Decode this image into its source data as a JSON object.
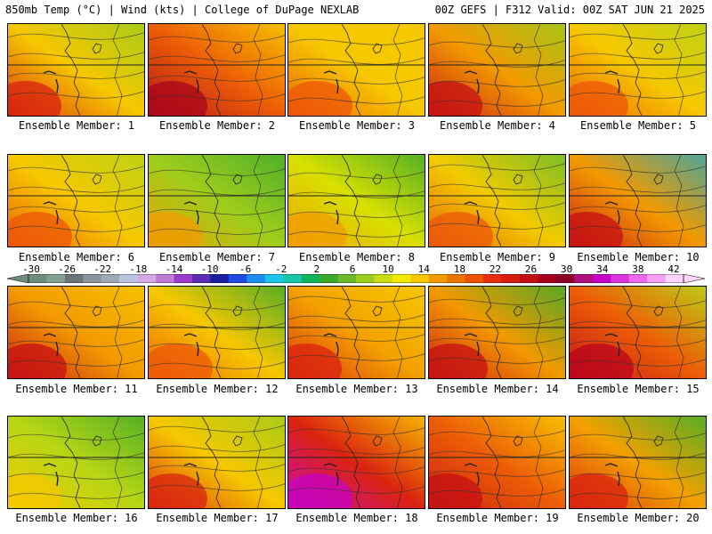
{
  "header": {
    "left": "850mb Temp (°C) | Wind (kts) | College of DuPage NEXLAB",
    "right": "00Z GEFS | F312 Valid: 00Z SAT JUN 21 2025"
  },
  "member_label_prefix": "Ensemble Member: ",
  "members": [
    {
      "id": "1",
      "label": "Ensemble Member: 1",
      "base": "#f6c800",
      "grad": [
        "#d81c10",
        "#f6c800",
        "#9ccc1c"
      ]
    },
    {
      "id": "2",
      "label": "Ensemble Member: 2",
      "base": "#f29a00",
      "grad": [
        "#a8001c",
        "#ec5208",
        "#f6c800"
      ]
    },
    {
      "id": "3",
      "label": "Ensemble Member: 3",
      "base": "#f6c800",
      "grad": [
        "#ec5208",
        "#f6c800",
        "#f6c800"
      ]
    },
    {
      "id": "4",
      "label": "Ensemble Member: 4",
      "base": "#f29a00",
      "grad": [
        "#c40c14",
        "#f29a00",
        "#9ccc1c"
      ]
    },
    {
      "id": "5",
      "label": "Ensemble Member: 5",
      "base": "#f6c800",
      "grad": [
        "#ec5208",
        "#f6c800",
        "#b4d418"
      ]
    },
    {
      "id": "6",
      "label": "Ensemble Member: 6",
      "base": "#f6c800",
      "grad": [
        "#ec5208",
        "#f6c800",
        "#b4d418"
      ]
    },
    {
      "id": "7",
      "label": "Ensemble Member: 7",
      "base": "#b4d418",
      "grad": [
        "#f29a00",
        "#9ccc1c",
        "#3ca82c"
      ]
    },
    {
      "id": "8",
      "label": "Ensemble Member: 8",
      "base": "#d8e000",
      "grad": [
        "#f29a00",
        "#d8e000",
        "#3ca82c"
      ]
    },
    {
      "id": "9",
      "label": "Ensemble Member: 9",
      "base": "#d8e000",
      "grad": [
        "#ec5208",
        "#f6c800",
        "#6cb82c"
      ]
    },
    {
      "id": "10",
      "label": "Ensemble Member: 10",
      "base": "#f29a00",
      "grad": [
        "#c40c14",
        "#f29a00",
        "#2ca8b4"
      ]
    },
    {
      "id": "11",
      "label": "Ensemble Member: 11",
      "base": "#f29a00",
      "grad": [
        "#c40c14",
        "#f29a00",
        "#f6c800"
      ]
    },
    {
      "id": "12",
      "label": "Ensemble Member: 12",
      "base": "#f6c800",
      "grad": [
        "#ec5208",
        "#f6c800",
        "#3ca82c"
      ]
    },
    {
      "id": "13",
      "label": "Ensemble Member: 13",
      "base": "#f6c800",
      "grad": [
        "#d81c10",
        "#f29a00",
        "#f6c800"
      ]
    },
    {
      "id": "14",
      "label": "Ensemble Member: 14",
      "base": "#f29a00",
      "grad": [
        "#c40c14",
        "#f29a00",
        "#3ca82c"
      ]
    },
    {
      "id": "15",
      "label": "Ensemble Member: 15",
      "base": "#f29a00",
      "grad": [
        "#b8001c",
        "#ec5208",
        "#b4d418"
      ]
    },
    {
      "id": "16",
      "label": "Ensemble Member: 16",
      "base": "#d8e000",
      "grad": [
        "#f6c800",
        "#b4d418",
        "#3ca82c"
      ]
    },
    {
      "id": "17",
      "label": "Ensemble Member: 17",
      "base": "#f6c800",
      "grad": [
        "#d81c10",
        "#f6c800",
        "#9ccc1c"
      ]
    },
    {
      "id": "18",
      "label": "Ensemble Member: 18",
      "base": "#ec5208",
      "grad": [
        "#c800c8",
        "#d81c10",
        "#f6c800"
      ]
    },
    {
      "id": "19",
      "label": "Ensemble Member: 19",
      "base": "#f29a00",
      "grad": [
        "#c40c14",
        "#ec5208",
        "#f6c800"
      ]
    },
    {
      "id": "20",
      "label": "Ensemble Member: 20",
      "base": "#f6c800",
      "grad": [
        "#d81c10",
        "#f29a00",
        "#3ca82c"
      ]
    }
  ],
  "colorbar": {
    "labels": [
      "-30",
      "-26",
      "-22",
      "-18",
      "-14",
      "-10",
      "-6",
      "-2",
      "2",
      "6",
      "10",
      "14",
      "18",
      "22",
      "26",
      "30",
      "34",
      "38",
      "42"
    ],
    "colors": [
      "#6e8c7c",
      "#84a090",
      "#6c7478",
      "#8c949c",
      "#a0a8b4",
      "#bcc4e0",
      "#d8a8e4",
      "#c07cd8",
      "#9c3cc8",
      "#5c2cb4",
      "#1c1ca0",
      "#1c4ce4",
      "#1c8cf0",
      "#1cc4e8",
      "#18c8a8",
      "#10b45c",
      "#3ca82c",
      "#6cb82c",
      "#9ccc1c",
      "#c8dc10",
      "#f0ec00",
      "#f6c800",
      "#f29a00",
      "#ec7400",
      "#ec5208",
      "#e82c0c",
      "#d81c10",
      "#c40c14",
      "#a8001c",
      "#8c0028",
      "#b0107c",
      "#c800c8",
      "#dc34dc",
      "#ec68ec",
      "#f4a0f4",
      "#fcd4fc"
    ]
  }
}
